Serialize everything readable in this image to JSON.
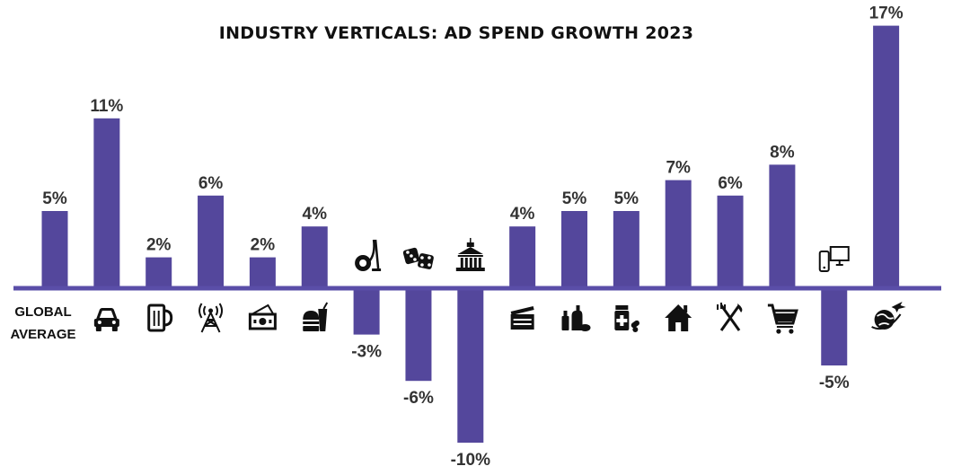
{
  "chart_data": {
    "type": "bar",
    "title": "INDUSTRY VERTICALS: AD SPEND GROWTH 2023",
    "xlabel": "",
    "ylabel": "",
    "ylim": [
      -10,
      17
    ],
    "bar_color": "#54479c",
    "axis_color": "#5a4ea8",
    "categories": [
      {
        "name": "GLOBAL AVERAGE",
        "label_lines": [
          "GLOBAL",
          "AVERAGE"
        ],
        "icon": "",
        "value": 5,
        "value_label": "5%"
      },
      {
        "name": "automotive",
        "icon": "car-icon",
        "value": 11,
        "value_label": "11%"
      },
      {
        "name": "alcoholic drinks",
        "icon": "beer-mug-icon",
        "value": 2,
        "value_label": "2%"
      },
      {
        "name": "telecommunications",
        "icon": "radio-tower-icon",
        "value": 6,
        "value_label": "6%"
      },
      {
        "name": "financial services",
        "icon": "money-icon",
        "value": 2,
        "value_label": "2%"
      },
      {
        "name": "fast food",
        "icon": "fast-food-icon",
        "value": 4,
        "value_label": "4%"
      },
      {
        "name": "household appliances",
        "icon": "vacuum-cleaner-icon",
        "value": -3,
        "value_label": "-3%"
      },
      {
        "name": "gambling",
        "icon": "dice-icon",
        "value": -6,
        "value_label": "-6%"
      },
      {
        "name": "government",
        "icon": "government-building-icon",
        "value": -10,
        "value_label": "-10%"
      },
      {
        "name": "entertainment",
        "icon": "clapperboard-icon",
        "value": 4,
        "value_label": "4%"
      },
      {
        "name": "toiletries and cosmetics",
        "icon": "cosmetics-icon",
        "value": 5,
        "value_label": "5%"
      },
      {
        "name": "pharmaceuticals",
        "icon": "medicine-icon",
        "value": 5,
        "value_label": "5%"
      },
      {
        "name": "real estate",
        "icon": "house-icon",
        "value": 7,
        "value_label": "7%"
      },
      {
        "name": "restaurants",
        "icon": "fork-knife-icon",
        "value": 6,
        "value_label": "6%"
      },
      {
        "name": "retail",
        "icon": "shopping-cart-icon",
        "value": 8,
        "value_label": "8%"
      },
      {
        "name": "technology",
        "icon": "devices-icon",
        "value": -5,
        "value_label": "-5%"
      },
      {
        "name": "travel",
        "icon": "globe-plane-icon",
        "value": 17,
        "value_label": "17%"
      }
    ]
  }
}
